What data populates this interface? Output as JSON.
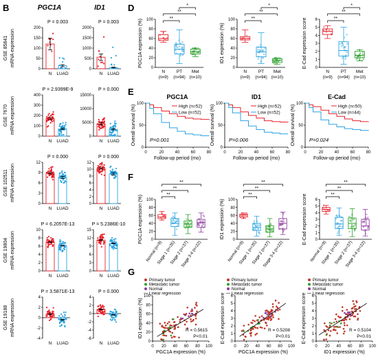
{
  "panel_letters": {
    "B": "B",
    "D": "D",
    "E": "E",
    "F": "F",
    "G": "G"
  },
  "colors": {
    "red": "#e8202a",
    "blue": "#2aa3e0",
    "green": "#2ca02c",
    "purple": "#8e3c9e",
    "darkred": "#c0392b",
    "grey": "#7f7f7f"
  },
  "panelB": {
    "col_titles": [
      "PGC1A",
      "ID1"
    ],
    "ylabel": "mRNA expression",
    "xcats": [
      "N",
      "LUAD"
    ],
    "rows": [
      {
        "dataset": "GSE 85841",
        "pvals": [
          "P = 0.003",
          "P = 0.003"
        ],
        "yticks": [
          [
            "0",
            "50",
            "100",
            "150",
            "200"
          ],
          [
            "0",
            "500",
            "1000",
            "1500",
            "2000"
          ]
        ],
        "ylim": [
          [
            0,
            200
          ],
          [
            0,
            2000
          ]
        ],
        "means": [
          [
            120,
            15
          ],
          [
            560,
            60
          ]
        ],
        "sems": [
          [
            28,
            5
          ],
          [
            160,
            20
          ]
        ]
      },
      {
        "dataset": "GSE 7670",
        "pvals": [
          "P = 2.9399E-9",
          "P = 0.000"
        ],
        "yticks": [
          [
            "0",
            "100",
            "200",
            "300",
            "400"
          ],
          [
            "0",
            "5000",
            "10000",
            "15000"
          ]
        ],
        "ylim": [
          [
            0,
            400
          ],
          [
            0,
            15000
          ]
        ],
        "means": [
          [
            170,
            70
          ],
          [
            4500,
            2500
          ]
        ],
        "sems": [
          [
            10,
            6
          ],
          [
            400,
            250
          ]
        ]
      },
      {
        "dataset": "GSE 102511",
        "pvals": [
          "P = 0.000",
          "P = 0.000"
        ],
        "yticks": [
          [
            "0",
            "3",
            "6",
            "9",
            "12"
          ],
          [
            "0",
            "2",
            "4",
            "6",
            "8",
            "10",
            "12"
          ]
        ],
        "ylim": [
          [
            0,
            12
          ],
          [
            0,
            12
          ]
        ],
        "means": [
          [
            8.8,
            7.6
          ],
          [
            10.2,
            8.6
          ]
        ],
        "sems": [
          [
            0.2,
            0.3
          ],
          [
            0.2,
            0.35
          ]
        ]
      },
      {
        "dataset": "GSE 19804",
        "pvals": [
          "P = 6.2057E-13",
          "P = 5.2386E-10"
        ],
        "yticks": [
          [
            "0",
            "2",
            "4",
            "6",
            "8",
            "10"
          ],
          [
            "0",
            "3",
            "6",
            "9",
            "12",
            "15"
          ]
        ],
        "ylim": [
          [
            0,
            10
          ],
          [
            0,
            15
          ]
        ],
        "means": [
          [
            7.0,
            6.1
          ],
          [
            11.2,
            10.0
          ]
        ],
        "sems": [
          [
            0.1,
            0.1
          ],
          [
            0.1,
            0.15
          ]
        ]
      },
      {
        "dataset": "GSE 19188",
        "pvals": [
          "P = 3.5871E-13",
          "P = 0.000"
        ],
        "yticks": [
          [
            "-4",
            "-2",
            "0",
            "2",
            "4"
          ],
          [
            "-6",
            "-4",
            "-2",
            "0",
            "2",
            "4"
          ]
        ],
        "ylim": [
          [
            -4,
            4
          ],
          [
            -6,
            4
          ]
        ],
        "means": [
          [
            0.7,
            -0.4
          ],
          [
            1.0,
            -0.3
          ]
        ],
        "sems": [
          [
            0.1,
            0.1
          ],
          [
            0.1,
            0.1
          ]
        ]
      }
    ]
  },
  "panelD": {
    "xcats": [
      "N",
      "PT",
      "Met"
    ],
    "ns": [
      "(n=9)",
      "(n=94)",
      "(n=10)"
    ],
    "sig": [
      "**",
      "**",
      "*"
    ],
    "charts": [
      {
        "ylabel": "PGC1A expression (%)",
        "yticks": [
          "0",
          "20",
          "40",
          "60",
          "80",
          "100"
        ],
        "ylim": [
          0,
          100
        ],
        "boxes": [
          {
            "min": 52,
            "q1": 56,
            "med": 60,
            "q3": 68,
            "max": 75
          },
          {
            "min": 8,
            "q1": 28,
            "med": 38,
            "q3": 48,
            "max": 78
          },
          {
            "min": 22,
            "q1": 28,
            "med": 32,
            "q3": 38,
            "max": 40
          }
        ]
      },
      {
        "ylabel": "ID1 expression (%)",
        "yticks": [
          "0",
          "20",
          "40",
          "60",
          "80",
          "100"
        ],
        "ylim": [
          0,
          100
        ],
        "boxes": [
          {
            "min": 52,
            "q1": 57,
            "med": 60,
            "q3": 64,
            "max": 78
          },
          {
            "min": 8,
            "q1": 22,
            "med": 32,
            "q3": 42,
            "max": 72
          },
          {
            "min": 6,
            "q1": 10,
            "med": 14,
            "q3": 18,
            "max": 20
          }
        ]
      },
      {
        "ylabel": "E-Cad expression score",
        "yticks": [
          "0",
          "1",
          "2",
          "3",
          "4",
          "5",
          "6"
        ],
        "ylim": [
          0,
          6
        ],
        "boxes": [
          {
            "min": 3.6,
            "q1": 4.1,
            "med": 4.5,
            "q3": 4.8,
            "max": 5.2
          },
          {
            "min": 0.4,
            "q1": 1.4,
            "med": 2.1,
            "q3": 3.2,
            "max": 5.0
          },
          {
            "min": 0.8,
            "q1": 1.2,
            "med": 1.5,
            "q3": 2.0,
            "max": 2.2
          }
        ]
      }
    ]
  },
  "panelE": {
    "xlabel": "Follow-up period (mo)",
    "ylabel": "Overall survival (%)",
    "xticks": [
      "0",
      "20",
      "40",
      "60",
      "80"
    ],
    "yticks": [
      "0",
      "50",
      "100"
    ],
    "charts": [
      {
        "title": "PGC1A",
        "p": "P=0.001",
        "high": "High (n=52)",
        "low": "Low (n=52)",
        "high_curve": [
          [
            0,
            100
          ],
          [
            5,
            96
          ],
          [
            10,
            90
          ],
          [
            20,
            82
          ],
          [
            30,
            76
          ],
          [
            40,
            70
          ],
          [
            50,
            66
          ],
          [
            60,
            64
          ],
          [
            70,
            63
          ],
          [
            80,
            62
          ]
        ],
        "low_curve": [
          [
            0,
            100
          ],
          [
            5,
            88
          ],
          [
            10,
            76
          ],
          [
            20,
            56
          ],
          [
            30,
            44
          ],
          [
            40,
            36
          ],
          [
            50,
            30
          ],
          [
            60,
            28
          ],
          [
            70,
            26
          ],
          [
            80,
            25
          ]
        ]
      },
      {
        "title": "ID1",
        "p": "P=0.006",
        "high": "High (n=52)",
        "low": "Low (n=52)",
        "high_curve": [
          [
            0,
            100
          ],
          [
            5,
            96
          ],
          [
            10,
            90
          ],
          [
            20,
            80
          ],
          [
            30,
            72
          ],
          [
            40,
            66
          ],
          [
            50,
            60
          ],
          [
            60,
            58
          ],
          [
            70,
            57
          ],
          [
            80,
            56
          ]
        ],
        "low_curve": [
          [
            0,
            100
          ],
          [
            5,
            90
          ],
          [
            10,
            78
          ],
          [
            20,
            60
          ],
          [
            30,
            48
          ],
          [
            40,
            40
          ],
          [
            50,
            34
          ],
          [
            60,
            32
          ],
          [
            70,
            30
          ],
          [
            80,
            30
          ]
        ]
      },
      {
        "title": "E-Cad",
        "p": "P=0.024",
        "high": "High (n=50)",
        "low": "Low (n=44)",
        "high_curve": [
          [
            0,
            100
          ],
          [
            5,
            96
          ],
          [
            10,
            92
          ],
          [
            20,
            84
          ],
          [
            30,
            76
          ],
          [
            40,
            70
          ],
          [
            50,
            64
          ],
          [
            60,
            60
          ],
          [
            70,
            58
          ],
          [
            80,
            57
          ]
        ],
        "low_curve": [
          [
            0,
            100
          ],
          [
            5,
            90
          ],
          [
            10,
            80
          ],
          [
            20,
            62
          ],
          [
            30,
            52
          ],
          [
            40,
            46
          ],
          [
            50,
            42
          ],
          [
            60,
            40
          ],
          [
            70,
            38
          ],
          [
            80,
            37
          ]
        ]
      }
    ]
  },
  "panelF": {
    "xcats": [
      "Normal (n=9)",
      "Stage 1 (n=35)",
      "Stage 2 (n=37)",
      "Stage 3-4 (n=22)"
    ],
    "sig": [
      "**",
      "**",
      "**"
    ],
    "charts": [
      {
        "ylabel": "PGC1A expression (%)",
        "yticks": [
          "0",
          "20",
          "40",
          "60",
          "80",
          "100"
        ],
        "ylim": [
          0,
          100
        ],
        "boxes": [
          {
            "min": 48,
            "q1": 52,
            "med": 56,
            "q3": 62,
            "max": 70
          },
          {
            "min": 10,
            "q1": 32,
            "med": 40,
            "q3": 52,
            "max": 66
          },
          {
            "min": 14,
            "q1": 30,
            "med": 38,
            "q3": 46,
            "max": 62
          },
          {
            "min": 18,
            "q1": 30,
            "med": 42,
            "q3": 50,
            "max": 66
          }
        ]
      },
      {
        "ylabel": "ID1 expression (%)",
        "yticks": [
          "0",
          "20",
          "40",
          "60",
          "80",
          "100"
        ],
        "ylim": [
          0,
          100
        ],
        "boxes": [
          {
            "min": 52,
            "q1": 56,
            "med": 60,
            "q3": 63,
            "max": 66
          },
          {
            "min": 8,
            "q1": 22,
            "med": 30,
            "q3": 40,
            "max": 58
          },
          {
            "min": 6,
            "q1": 18,
            "med": 26,
            "q3": 34,
            "max": 52
          },
          {
            "min": 12,
            "q1": 26,
            "med": 40,
            "q3": 52,
            "max": 68
          }
        ]
      },
      {
        "ylabel": "E-Cad expression score",
        "yticks": [
          "0",
          "1",
          "2",
          "3",
          "4",
          "5",
          "6"
        ],
        "ylim": [
          0,
          6
        ],
        "boxes": [
          {
            "min": 3.8,
            "q1": 4.2,
            "med": 4.5,
            "q3": 4.8,
            "max": 5.1
          },
          {
            "min": 0.6,
            "q1": 1.6,
            "med": 2.3,
            "q3": 3.3,
            "max": 4.7
          },
          {
            "min": 0.4,
            "q1": 1.6,
            "med": 2.4,
            "q3": 3.2,
            "max": 4.6
          },
          {
            "min": 0.5,
            "q1": 1.4,
            "med": 2.0,
            "q3": 3.0,
            "max": 4.5
          }
        ]
      }
    ]
  },
  "panelG": {
    "legend": [
      "Primary tumor",
      "Metastatic tumor",
      "Normal",
      "Linear regression"
    ],
    "charts": [
      {
        "xlabel": "PGC1A expression (%)",
        "ylabel": "ID1 expression (%)",
        "xticks": [
          "0",
          "20",
          "40",
          "60",
          "80",
          "100"
        ],
        "yticks": [
          "0",
          "20",
          "40",
          "60",
          "80",
          "100"
        ],
        "xlim": [
          0,
          100
        ],
        "ylim": [
          0,
          100
        ],
        "r": "R = 0.5615",
        "p": "P<0.01",
        "fit": [
          [
            8,
            10
          ],
          [
            90,
            70
          ]
        ]
      },
      {
        "xlabel": "PGC1A expression (%)",
        "ylabel": "E-Cad expression score",
        "xticks": [
          "0",
          "20",
          "40",
          "60",
          "80",
          "100"
        ],
        "yticks": [
          "0",
          "1",
          "2",
          "3",
          "4",
          "5",
          "6"
        ],
        "xlim": [
          0,
          100
        ],
        "ylim": [
          0,
          6
        ],
        "r": "R = 0.5208",
        "p": "P<0.01",
        "fit": [
          [
            8,
            0.6
          ],
          [
            90,
            5.0
          ]
        ]
      },
      {
        "xlabel": "ID1 expression (%)",
        "ylabel": "E-Cad expression score",
        "xticks": [
          "0",
          "20",
          "40",
          "60",
          "80",
          "100"
        ],
        "yticks": [
          "0",
          "1",
          "2",
          "3",
          "4",
          "5",
          "6"
        ],
        "xlim": [
          0,
          100
        ],
        "ylim": [
          0,
          6
        ],
        "r": "R = 0.5104",
        "p": "P<0.01",
        "fit": [
          [
            5,
            0.8
          ],
          [
            90,
            5.0
          ]
        ]
      }
    ]
  },
  "chart_data": [
    {
      "type": "bar",
      "panel": "B",
      "title": "PGC1A",
      "series": [
        {
          "name": "GSE 85841",
          "values": [
            120,
            15
          ]
        },
        {
          "name": "GSE 7670",
          "values": [
            170,
            70
          ]
        },
        {
          "name": "GSE 102511",
          "values": [
            8.8,
            7.6
          ]
        },
        {
          "name": "GSE 19804",
          "values": [
            7.0,
            6.1
          ]
        },
        {
          "name": "GSE 19188",
          "values": [
            0.7,
            -0.4
          ]
        }
      ],
      "categories": [
        "N",
        "LUAD"
      ],
      "ylabel": "mRNA expression"
    },
    {
      "type": "bar",
      "panel": "B",
      "title": "ID1",
      "series": [
        {
          "name": "GSE 85841",
          "values": [
            560,
            60
          ]
        },
        {
          "name": "GSE 7670",
          "values": [
            4500,
            2500
          ]
        },
        {
          "name": "GSE 102511",
          "values": [
            10.2,
            8.6
          ]
        },
        {
          "name": "GSE 19804",
          "values": [
            11.2,
            10.0
          ]
        },
        {
          "name": "GSE 19188",
          "values": [
            1.0,
            -0.3
          ]
        }
      ],
      "categories": [
        "N",
        "LUAD"
      ],
      "ylabel": "mRNA expression"
    },
    {
      "type": "box",
      "panel": "D",
      "categories": [
        "N",
        "PT",
        "Met"
      ],
      "series": [
        {
          "name": "PGC1A expression (%)",
          "medians": [
            60,
            38,
            32
          ]
        },
        {
          "name": "ID1 expression (%)",
          "medians": [
            60,
            32,
            14
          ]
        },
        {
          "name": "E-Cad expression score",
          "medians": [
            4.5,
            2.1,
            1.5
          ]
        }
      ]
    },
    {
      "type": "line",
      "panel": "E",
      "xlabel": "Follow-up period (mo)",
      "ylabel": "Overall survival (%)",
      "series": [
        {
          "name": "PGC1A High (n=52)"
        },
        {
          "name": "PGC1A Low (n=52)"
        },
        {
          "name": "ID1 High (n=52)"
        },
        {
          "name": "ID1 Low (n=52)"
        },
        {
          "name": "E-Cad High (n=50)"
        },
        {
          "name": "E-Cad Low (n=44)"
        }
      ]
    },
    {
      "type": "box",
      "panel": "F",
      "categories": [
        "Normal (n=9)",
        "Stage 1 (n=35)",
        "Stage 2 (n=37)",
        "Stage 3-4 (n=22)"
      ],
      "series": [
        {
          "name": "PGC1A expression (%)",
          "medians": [
            56,
            40,
            38,
            42
          ]
        },
        {
          "name": "ID1 expression (%)",
          "medians": [
            60,
            30,
            26,
            40
          ]
        },
        {
          "name": "E-Cad expression score",
          "medians": [
            4.5,
            2.3,
            2.4,
            2.0
          ]
        }
      ]
    },
    {
      "type": "scatter",
      "panel": "G",
      "series": [
        {
          "name": "PGC1A vs ID1",
          "r": 0.5615
        },
        {
          "name": "PGC1A vs E-Cad",
          "r": 0.5208
        },
        {
          "name": "ID1 vs E-Cad",
          "r": 0.5104
        }
      ]
    }
  ]
}
